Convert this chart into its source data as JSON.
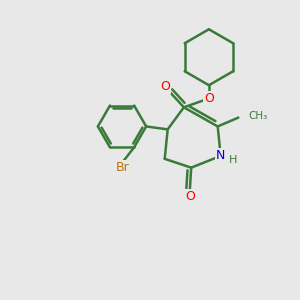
{
  "background_color": "#e8e8e8",
  "bond_color": "#3a7a3a",
  "bond_width": 1.8,
  "atom_colors": {
    "O": "#ff0000",
    "N": "#0000cc",
    "Br": "#bb7700",
    "C": "#3a7a3a"
  },
  "figsize": [
    3.0,
    3.0
  ],
  "dpi": 100
}
